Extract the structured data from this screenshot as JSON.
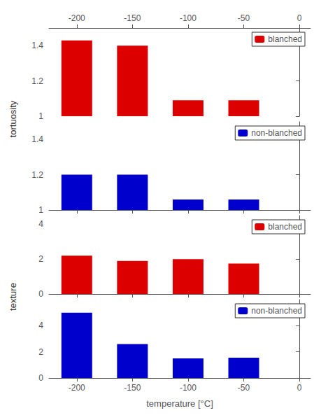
{
  "chart_data": [
    {
      "type": "bar",
      "x": [
        -200,
        -150,
        -100,
        -50
      ],
      "series": [
        {
          "name": "blanched",
          "color": "#dd0000",
          "values": [
            1.43,
            1.4,
            1.09,
            1.09
          ]
        }
      ],
      "xlim": [
        -225,
        10
      ],
      "xticks": [
        -200,
        -150,
        -100,
        -50,
        0
      ],
      "ylim": [
        1,
        1.5
      ],
      "yticks": [
        1,
        1.2,
        1.4
      ],
      "ylabel": "tortuosity",
      "grid": false,
      "legend": "upper right"
    },
    {
      "type": "bar",
      "x": [
        -200,
        -150,
        -100,
        -50
      ],
      "series": [
        {
          "name": "non-blanched",
          "color": "#0000cc",
          "values": [
            1.2,
            1.2,
            1.06,
            1.06
          ]
        }
      ],
      "xlim": [
        -225,
        10
      ],
      "xticks": [
        -200,
        -150,
        -100,
        -50,
        0
      ],
      "ylim": [
        1,
        1.5
      ],
      "yticks": [
        1,
        1.2,
        1.4
      ],
      "grid": false,
      "legend": "upper right",
      "tick_labels": "y"
    },
    {
      "type": "bar",
      "x": [
        -200,
        -150,
        -100,
        -50
      ],
      "series": [
        {
          "name": "blanched",
          "color": "#dd0000",
          "values": [
            2.2,
            1.9,
            2.0,
            1.75
          ]
        }
      ],
      "xlim": [
        -225,
        10
      ],
      "xticks": [
        -200,
        -150,
        -100,
        -50,
        0
      ],
      "ylim": [
        0,
        4.5
      ],
      "yticks": [
        0,
        2,
        4
      ],
      "ylabel": "texture",
      "grid": false,
      "legend": "upper right",
      "tick_labels": "y"
    },
    {
      "type": "bar",
      "x": [
        -200,
        -150,
        -100,
        -50
      ],
      "series": [
        {
          "name": "non-blanched",
          "color": "#0000cc",
          "values": [
            5.0,
            2.6,
            1.5,
            1.55
          ]
        }
      ],
      "xlim": [
        -225,
        10
      ],
      "xticks": [
        -200,
        -150,
        -100,
        -50,
        0
      ],
      "ylim": [
        0,
        6
      ],
      "yticks": [
        0,
        2,
        4
      ],
      "xlabel": "temperature [°C]",
      "grid": false,
      "legend": "upper right"
    }
  ]
}
